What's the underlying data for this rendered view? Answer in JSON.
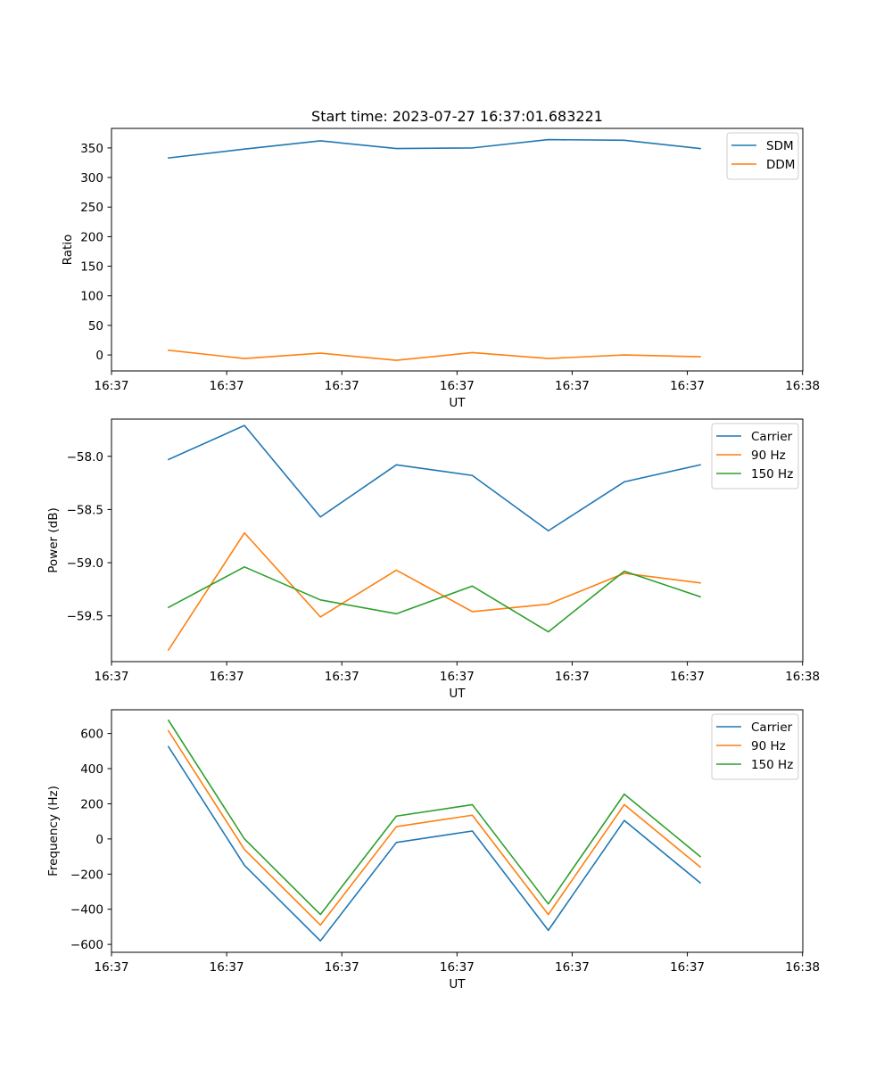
{
  "figure": {
    "title": "Start time: 2023-07-27 16:37:01.683221"
  },
  "colors": {
    "blue": "#1f77b4",
    "orange": "#ff7f0e",
    "green": "#2ca02c"
  },
  "chart_data": [
    {
      "type": "line",
      "title": "Start time: 2023-07-27 16:37:01.683221",
      "xlabel": "UT",
      "ylabel": "Ratio",
      "x_tick_labels": [
        "16:37",
        "16:37",
        "16:37",
        "16:37",
        "16:37",
        "16:37",
        "16:38"
      ],
      "xlim": [
        0,
        9.1
      ],
      "x_ticks": [
        0,
        1.516,
        3.032,
        4.548,
        6.064,
        7.58,
        9.096
      ],
      "x": [
        0.75,
        1.75,
        2.75,
        3.75,
        4.75,
        5.75,
        6.75,
        7.75
      ],
      "ylim": [
        -27,
        383
      ],
      "y_ticks": [
        0,
        50,
        100,
        150,
        200,
        250,
        300,
        350
      ],
      "y_tick_labels": [
        "0",
        "50",
        "100",
        "150",
        "200",
        "250",
        "300",
        "350"
      ],
      "legend_position": "top-right",
      "series": [
        {
          "name": "SDM",
          "color": "#1f77b4",
          "values": [
            333,
            348,
            362,
            349,
            350,
            364,
            363,
            349
          ]
        },
        {
          "name": "DDM",
          "color": "#ff7f0e",
          "values": [
            8,
            -6,
            3,
            -9,
            4,
            -6,
            0,
            -3
          ]
        }
      ]
    },
    {
      "type": "line",
      "title": "",
      "xlabel": "UT",
      "ylabel": "Power (dB)",
      "x_tick_labels": [
        "16:37",
        "16:37",
        "16:37",
        "16:37",
        "16:37",
        "16:37",
        "16:38"
      ],
      "xlim": [
        0,
        9.1
      ],
      "x_ticks": [
        0,
        1.516,
        3.032,
        4.548,
        6.064,
        7.58,
        9.096
      ],
      "x": [
        0.75,
        1.75,
        2.75,
        3.75,
        4.75,
        5.75,
        6.75,
        7.75
      ],
      "ylim": [
        -59.93,
        -57.65
      ],
      "y_ticks": [
        -58.0,
        -58.5,
        -59.0,
        -59.5
      ],
      "y_tick_labels": [
        "−58.0",
        "−58.5",
        "−59.0",
        "−59.5"
      ],
      "legend_position": "top-right",
      "series": [
        {
          "name": "Carrier",
          "color": "#1f77b4",
          "values": [
            -58.03,
            -57.71,
            -58.57,
            -58.08,
            -58.18,
            -58.7,
            -58.24,
            -58.08
          ]
        },
        {
          "name": "90 Hz",
          "color": "#ff7f0e",
          "values": [
            -59.82,
            -58.72,
            -59.51,
            -59.07,
            -59.46,
            -59.39,
            -59.1,
            -59.19
          ]
        },
        {
          "name": "150 Hz",
          "color": "#2ca02c",
          "values": [
            -59.42,
            -59.04,
            -59.35,
            -59.48,
            -59.22,
            -59.65,
            -59.08,
            -59.32
          ]
        }
      ]
    },
    {
      "type": "line",
      "title": "",
      "xlabel": "UT",
      "ylabel": "Frequency (Hz)",
      "x_tick_labels": [
        "16:37",
        "16:37",
        "16:37",
        "16:37",
        "16:37",
        "16:37",
        "16:38"
      ],
      "xlim": [
        0,
        9.1
      ],
      "x_ticks": [
        0,
        1.516,
        3.032,
        4.548,
        6.064,
        7.58,
        9.096
      ],
      "x": [
        0.75,
        1.75,
        2.75,
        3.75,
        4.75,
        5.75,
        6.75,
        7.75
      ],
      "ylim": [
        -645,
        735
      ],
      "y_ticks": [
        -600,
        -400,
        -200,
        0,
        200,
        400,
        600
      ],
      "y_tick_labels": [
        "−600",
        "−400",
        "−200",
        "0",
        "200",
        "400",
        "600"
      ],
      "legend_position": "top-right",
      "series": [
        {
          "name": "Carrier",
          "color": "#1f77b4",
          "values": [
            525,
            -150,
            -580,
            -20,
            45,
            -520,
            105,
            -250
          ]
        },
        {
          "name": "90 Hz",
          "color": "#ff7f0e",
          "values": [
            615,
            -60,
            -490,
            70,
            135,
            -430,
            195,
            -160
          ]
        },
        {
          "name": "150 Hz",
          "color": "#2ca02c",
          "values": [
            675,
            0,
            -430,
            130,
            195,
            -370,
            255,
            -100
          ]
        }
      ]
    }
  ]
}
